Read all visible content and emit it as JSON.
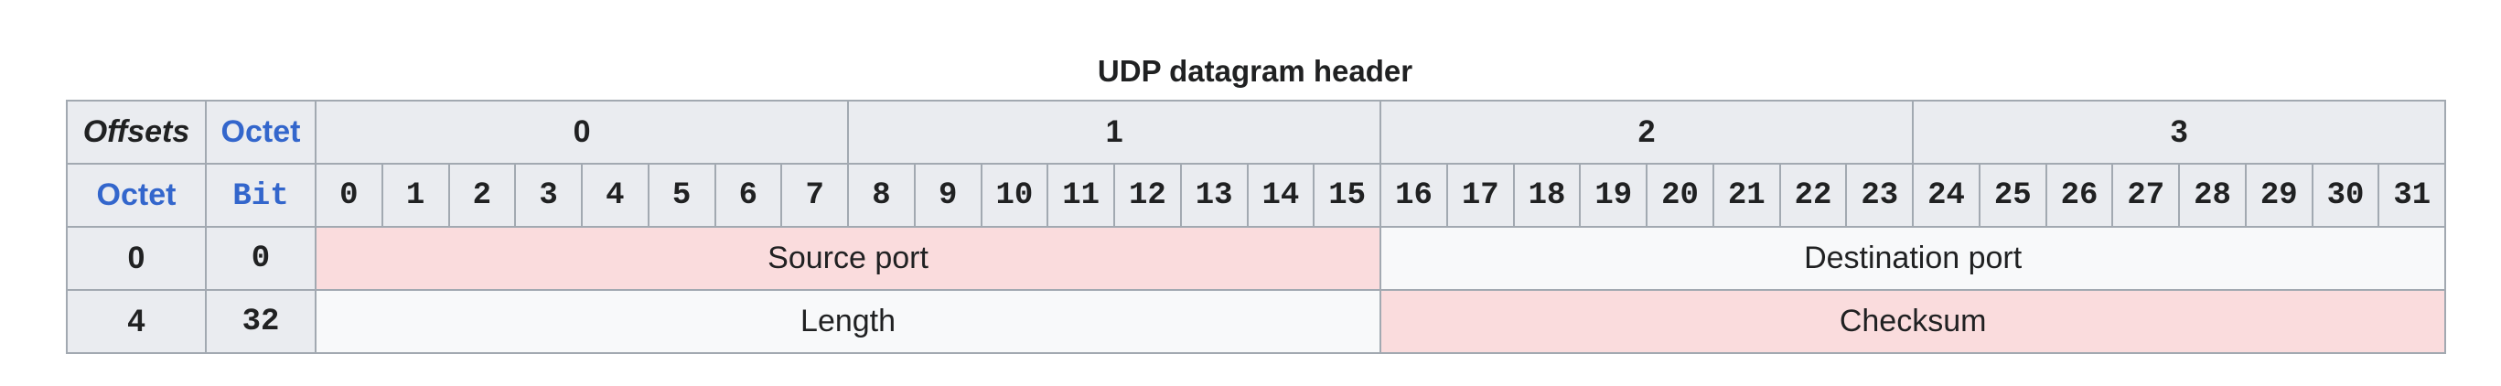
{
  "caption": "UDP datagram header",
  "header": {
    "offsets_label": "Offsets",
    "octet_label": "Octet",
    "row_octet_label": "Octet",
    "bit_label": "Bit",
    "octets": [
      "0",
      "1",
      "2",
      "3"
    ],
    "bits": [
      "0",
      "1",
      "2",
      "3",
      "4",
      "5",
      "6",
      "7",
      "8",
      "9",
      "10",
      "11",
      "12",
      "13",
      "14",
      "15",
      "16",
      "17",
      "18",
      "19",
      "20",
      "21",
      "22",
      "23",
      "24",
      "25",
      "26",
      "27",
      "28",
      "29",
      "30",
      "31"
    ]
  },
  "rows": [
    {
      "octet": "0",
      "bit": "0",
      "fields": [
        {
          "label": "Source port",
          "color": "#fadcdd"
        },
        {
          "label": "Destination port",
          "color": "#f8f9fa"
        }
      ]
    },
    {
      "octet": "4",
      "bit": "32",
      "fields": [
        {
          "label": "Length",
          "color": "#f8f9fa"
        },
        {
          "label": "Checksum",
          "color": "#fadcdd"
        }
      ]
    }
  ]
}
